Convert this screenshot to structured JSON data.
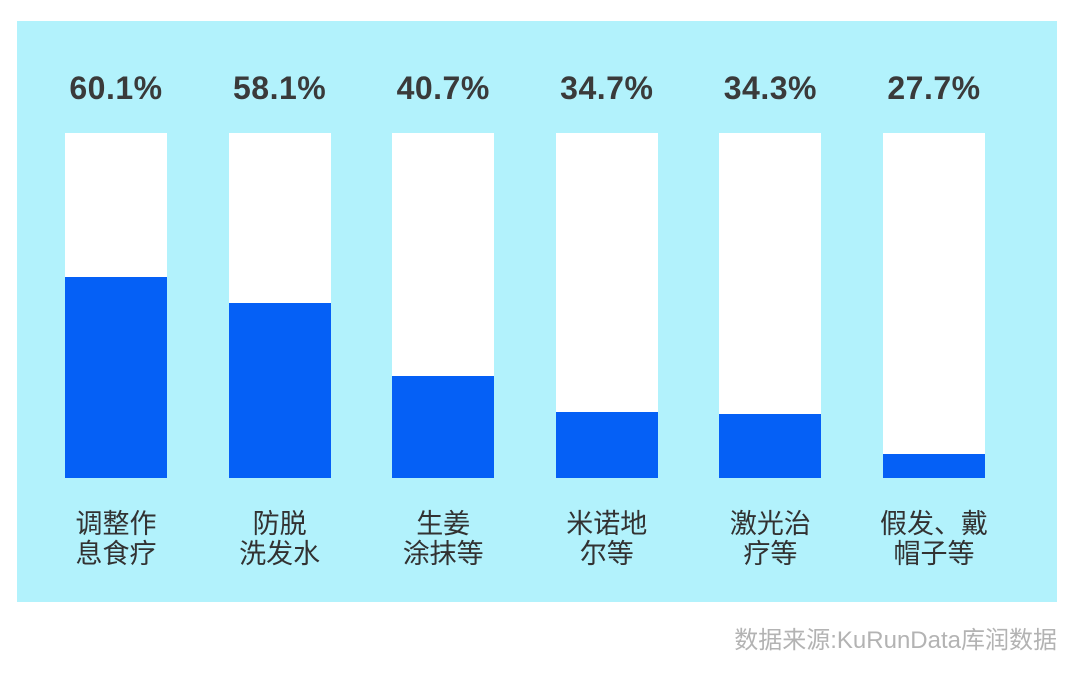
{
  "chart_data": {
    "type": "bar",
    "orientation": "vertical",
    "title": "",
    "xlabel": "",
    "ylabel": "",
    "unit": "%",
    "categories": [
      "调整作\n息食疗",
      "防脱\n洗发水",
      "生姜\n涂抹等",
      "米诺地\n尔等",
      "激光治\n疗等",
      "假发、戴\n帽子等"
    ],
    "values": [
      60.1,
      58.1,
      40.7,
      34.7,
      34.3,
      27.7
    ],
    "value_labels": [
      "60.1%",
      "58.1%",
      "40.7%",
      "34.7%",
      "34.3%",
      "27.7%"
    ],
    "bar_fill_fractions": [
      0.583,
      0.507,
      0.296,
      0.191,
      0.186,
      0.07
    ],
    "grid": false,
    "legend": "none",
    "axes_visible": false
  },
  "source_note": "数据来源:KuRunData库润数据",
  "colors": {
    "page_background": "#FFFFFF",
    "panel_background": "#B2F2FC",
    "bar_track": "#FFFFFF",
    "bar_fill": "#0560F6",
    "value_text": "#3A3A3A",
    "category_text": "#323232",
    "source_text": "#B3B3B3"
  }
}
